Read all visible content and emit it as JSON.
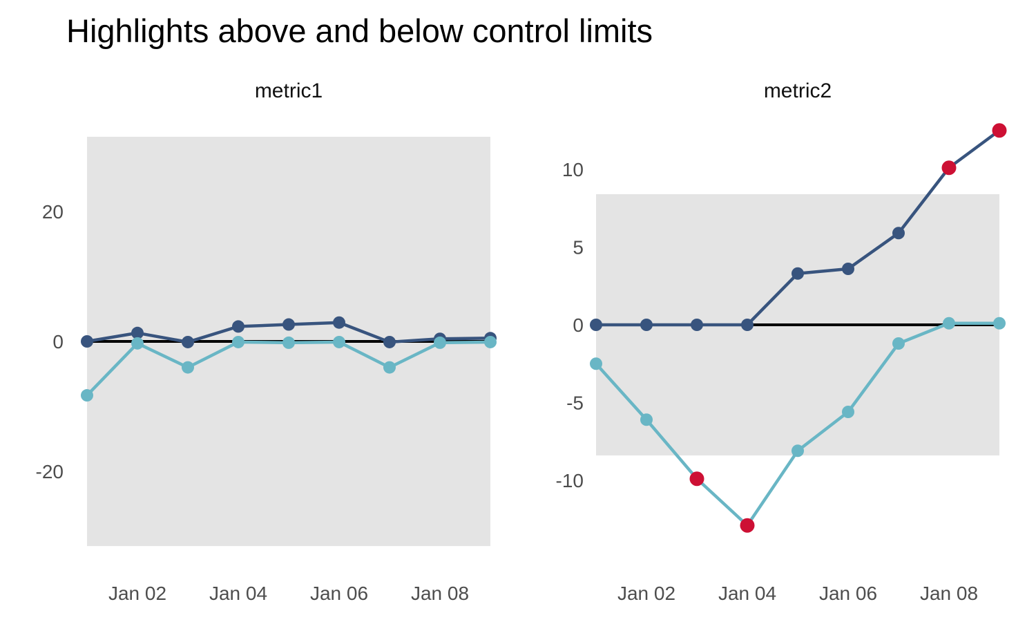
{
  "title": "Highlights above and below control limits",
  "colors": {
    "navy_series": "#38547e",
    "teal_series": "#69b6c5",
    "out_of_control_red": "#cd1034",
    "control_band_gray": "#e4e4e4",
    "center_line_black": "#000000",
    "tick_label_gray": "#4d4d4d",
    "panel_title_black": "#111111",
    "background": "#ffffff"
  },
  "chart_data": [
    {
      "type": "line",
      "title": "metric1",
      "x": [
        1,
        2,
        3,
        4,
        5,
        6,
        7,
        8,
        9
      ],
      "x_ticks": [
        {
          "at": 2,
          "label": "Jan 02"
        },
        {
          "at": 4,
          "label": "Jan 04"
        },
        {
          "at": 6,
          "label": "Jan 06"
        },
        {
          "at": 8,
          "label": "Jan 08"
        }
      ],
      "y_ticks": [
        {
          "value": 20,
          "label": "20"
        },
        {
          "value": 0,
          "label": "0"
        },
        {
          "value": -20,
          "label": "-20"
        }
      ],
      "ylim": [
        -35.5,
        33.4
      ],
      "center_line": 0,
      "control_limits": {
        "upper": 31.5,
        "lower": -31.5
      },
      "grid": false,
      "legend": "none",
      "series": [
        {
          "name": "navy",
          "color_key": "navy_series",
          "values": [
            0,
            1.3,
            -0.1,
            2.3,
            2.6,
            2.9,
            -0.1,
            0.4,
            0.5
          ],
          "out_of_control_indices": []
        },
        {
          "name": "teal",
          "color_key": "teal_series",
          "values": [
            -8.3,
            -0.3,
            -4.0,
            -0.1,
            -0.2,
            -0.1,
            -4.0,
            -0.2,
            -0.1
          ],
          "out_of_control_indices": []
        }
      ]
    },
    {
      "type": "line",
      "title": "metric2",
      "x": [
        1,
        2,
        3,
        4,
        5,
        6,
        7,
        8,
        9
      ],
      "x_ticks": [
        {
          "at": 2,
          "label": "Jan 02"
        },
        {
          "at": 4,
          "label": "Jan 04"
        },
        {
          "at": 6,
          "label": "Jan 06"
        },
        {
          "at": 8,
          "label": "Jan 08"
        }
      ],
      "y_ticks": [
        {
          "value": 10,
          "label": "10"
        },
        {
          "value": 5,
          "label": "5"
        },
        {
          "value": 0,
          "label": "0"
        },
        {
          "value": -5,
          "label": "-5"
        },
        {
          "value": -10,
          "label": "-10"
        }
      ],
      "ylim": [
        -16.0,
        12.9
      ],
      "center_line": 0,
      "control_limits": {
        "upper": 8.4,
        "lower": -8.4
      },
      "grid": false,
      "legend": "none",
      "series": [
        {
          "name": "navy",
          "color_key": "navy_series",
          "values": [
            0,
            0,
            0,
            0,
            3.3,
            3.6,
            5.9,
            10.1,
            12.5
          ],
          "out_of_control_indices": [
            7,
            8
          ]
        },
        {
          "name": "teal",
          "color_key": "teal_series",
          "values": [
            -2.5,
            -6.1,
            -9.9,
            -12.9,
            -8.1,
            -5.6,
            -1.2,
            0.1,
            0.1
          ],
          "out_of_control_indices": [
            2,
            3
          ]
        }
      ]
    }
  ]
}
